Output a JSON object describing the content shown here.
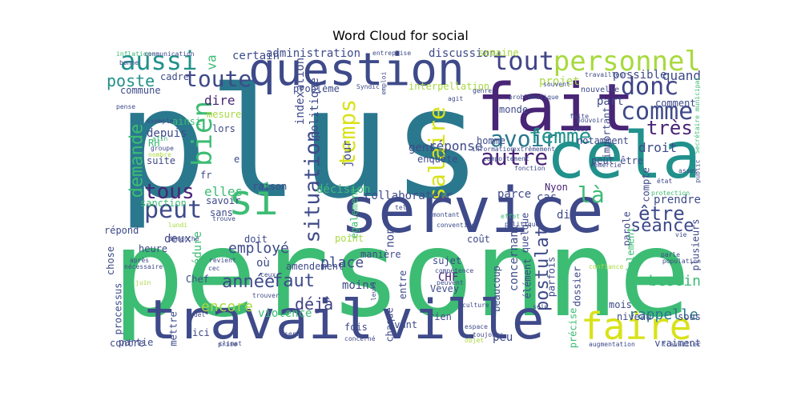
{
  "figure": {
    "title": "Word Cloud for social"
  },
  "palette": {
    "teal": "#2a788e",
    "green": "#3dbc74",
    "yellowgreen": "#a7d93f",
    "purple": "#482576",
    "blue": "#3e4a89",
    "dark": "#414487",
    "yellow": "#d8e219",
    "lightgreen": "#6ccd5a",
    "midteal": "#21918c"
  },
  "words": [
    {
      "text": "plus",
      "color": "teal"
    },
    {
      "text": "personne",
      "color": "green"
    },
    {
      "text": "service",
      "color": "blue"
    },
    {
      "text": "travail",
      "color": "blue"
    },
    {
      "text": "ville",
      "color": "blue"
    },
    {
      "text": "fait",
      "color": "purple"
    },
    {
      "text": "cela",
      "color": "midteal"
    },
    {
      "text": "question",
      "color": "blue"
    },
    {
      "text": "si",
      "color": "green"
    },
    {
      "text": "faire",
      "color": "yellow"
    },
    {
      "text": "personnel",
      "color": "yellowgreen"
    },
    {
      "text": "aussi",
      "color": "midteal"
    },
    {
      "text": "tout",
      "color": "dark"
    },
    {
      "text": "toute",
      "color": "blue"
    },
    {
      "text": "bien",
      "color": "green"
    },
    {
      "text": "peut",
      "color": "blue"
    },
    {
      "text": "tous",
      "color": "purple"
    },
    {
      "text": "donc",
      "color": "dark"
    },
    {
      "text": "comme",
      "color": "blue"
    },
    {
      "text": "avoir",
      "color": "teal"
    },
    {
      "text": "femme",
      "color": "midteal"
    },
    {
      "text": "autre",
      "color": "purple"
    },
    {
      "text": "très",
      "color": "purple"
    },
    {
      "text": "là",
      "color": "green"
    },
    {
      "text": "être",
      "color": "blue"
    },
    {
      "text": "séance",
      "color": "blue"
    },
    {
      "text": "temps",
      "color": "yellow"
    },
    {
      "text": "salaire",
      "color": "yellow"
    },
    {
      "text": "situation",
      "color": "blue"
    },
    {
      "text": "demande",
      "color": "green"
    },
    {
      "text": "poste",
      "color": "midteal"
    },
    {
      "text": "faut",
      "color": "blue"
    },
    {
      "text": "année",
      "color": "blue"
    },
    {
      "text": "postulat",
      "color": "blue"
    },
    {
      "text": "déjà",
      "color": "dark"
    },
    {
      "text": "encore",
      "color": "yellowgreen"
    },
    {
      "text": "rappelle",
      "color": "teal"
    },
    {
      "text": "besoin",
      "color": "green"
    },
    {
      "text": "employé",
      "color": "blue"
    },
    {
      "text": "place",
      "color": "blue"
    },
    {
      "text": "elles",
      "color": "green"
    },
    {
      "text": "va",
      "color": "green"
    },
    {
      "text": "dire",
      "color": "purple"
    },
    {
      "text": "depuis",
      "color": "blue"
    },
    {
      "text": "réponse",
      "color": "blue"
    },
    {
      "text": "droit",
      "color": "blue"
    },
    {
      "text": "part",
      "color": "blue"
    },
    {
      "text": "quand",
      "color": "blue"
    },
    {
      "text": "possible",
      "color": "blue"
    },
    {
      "text": "projet",
      "color": "yellowgreen"
    },
    {
      "text": "discussion",
      "color": "blue"
    },
    {
      "text": "administration",
      "color": "blue"
    },
    {
      "text": "certain",
      "color": "blue"
    },
    {
      "text": "cadre",
      "color": "blue"
    },
    {
      "text": "commune",
      "color": "blue"
    },
    {
      "text": "problème",
      "color": "blue"
    },
    {
      "text": "politique",
      "color": "blue"
    },
    {
      "text": "indexation",
      "color": "blue"
    },
    {
      "text": "interpellation",
      "color": "yellowgreen"
    },
    {
      "text": "jour",
      "color": "blue"
    },
    {
      "text": "gens",
      "color": "blue"
    },
    {
      "text": "enquête",
      "color": "blue"
    },
    {
      "text": "collaborateur",
      "color": "blue"
    },
    {
      "text": "décision",
      "color": "green"
    },
    {
      "text": "parce",
      "color": "blue"
    },
    {
      "text": "cas",
      "color": "blue"
    },
    {
      "text": "Nyon",
      "color": "purple"
    },
    {
      "text": "dit",
      "color": "blue"
    },
    {
      "text": "prendre",
      "color": "blue"
    },
    {
      "text": "sanction",
      "color": "green"
    },
    {
      "text": "heure",
      "color": "blue"
    },
    {
      "text": "raison",
      "color": "blue"
    },
    {
      "text": "savoir",
      "color": "blue"
    },
    {
      "text": "sans",
      "color": "blue"
    },
    {
      "text": "deux",
      "color": "dark"
    },
    {
      "text": "Chef",
      "color": "blue"
    },
    {
      "text": "où",
      "color": "blue"
    },
    {
      "text": "procédure",
      "color": "green"
    },
    {
      "text": "amendement",
      "color": "blue"
    },
    {
      "text": "violence",
      "color": "green"
    },
    {
      "text": "mettre",
      "color": "blue"
    },
    {
      "text": "ici",
      "color": "blue"
    },
    {
      "text": "fois",
      "color": "blue"
    },
    {
      "text": "partie",
      "color": "blue"
    },
    {
      "text": "contre",
      "color": "blue"
    },
    {
      "text": "processus",
      "color": "blue"
    },
    {
      "text": "chose",
      "color": "blue"
    },
    {
      "text": "moins",
      "color": "blue"
    },
    {
      "text": "CHF",
      "color": "purple"
    },
    {
      "text": "Vevey",
      "color": "blue"
    },
    {
      "text": "manière",
      "color": "blue"
    },
    {
      "text": "sujet",
      "color": "blue"
    },
    {
      "text": "concernant",
      "color": "blue"
    },
    {
      "text": "beaucoup",
      "color": "blue"
    },
    {
      "text": "parfois",
      "color": "blue"
    },
    {
      "text": "dossier",
      "color": "blue"
    },
    {
      "text": "mois",
      "color": "blue"
    },
    {
      "text": "niveau",
      "color": "blue"
    },
    {
      "text": "sous",
      "color": "blue"
    },
    {
      "text": "précise",
      "color": "green"
    },
    {
      "text": "vraiment",
      "color": "blue"
    },
    {
      "text": "peu",
      "color": "blue"
    },
    {
      "text": "rien",
      "color": "blue"
    },
    {
      "text": "avant",
      "color": "blue"
    },
    {
      "text": "entre",
      "color": "blue"
    },
    {
      "text": "chaque",
      "color": "blue"
    },
    {
      "text": "non",
      "color": "blue"
    },
    {
      "text": "RH",
      "color": "green"
    },
    {
      "text": "ainsi",
      "color": "green"
    },
    {
      "text": "suite",
      "color": "blue"
    },
    {
      "text": "lors",
      "color": "blue"
    },
    {
      "text": "mesure",
      "color": "yellowgreen"
    },
    {
      "text": "fr",
      "color": "blue"
    },
    {
      "text": "e",
      "color": "blue"
    },
    {
      "text": "monde",
      "color": "blue"
    },
    {
      "text": "homme",
      "color": "blue"
    },
    {
      "text": "notamment",
      "color": "blue"
    },
    {
      "text": "comment",
      "color": "blue"
    },
    {
      "text": "important",
      "color": "blue"
    },
    {
      "text": "compte",
      "color": "blue"
    },
    {
      "text": "peut être",
      "color": "blue"
    },
    {
      "text": "parole",
      "color": "blue"
    },
    {
      "text": "plusieurs",
      "color": "blue"
    },
    {
      "text": "quelque",
      "color": "blue"
    },
    {
      "text": "coût",
      "color": "blue"
    },
    {
      "text": "élément",
      "color": "blue"
    },
    {
      "text": "également",
      "color": "green"
    },
    {
      "text": "point",
      "color": "yellowgreen"
    },
    {
      "text": "doit",
      "color": "blue"
    },
    {
      "text": "répond",
      "color": "blue"
    },
    {
      "text": "réglement",
      "color": "green"
    },
    {
      "text": "semaine",
      "color": "yellowgreen"
    },
    {
      "text": "nouvelle",
      "color": "blue"
    },
    {
      "text": "inflation",
      "color": "green"
    },
    {
      "text": "communication",
      "color": "blue"
    },
    {
      "text": "entreprise",
      "color": "blue"
    },
    {
      "text": "bonne",
      "color": "blue"
    },
    {
      "text": "pense",
      "color": "blue"
    },
    {
      "text": "exemple",
      "color": "blue"
    },
    {
      "text": "afin",
      "color": "green"
    },
    {
      "text": "groupe",
      "color": "blue"
    },
    {
      "text": "nombre",
      "color": "yellowgreen"
    },
    {
      "text": "Syndic",
      "color": "blue"
    },
    {
      "text": "emploi",
      "color": "blue"
    },
    {
      "text": "agit",
      "color": "blue"
    },
    {
      "text": "genre",
      "color": "blue"
    },
    {
      "text": "souvent",
      "color": "blue"
    },
    {
      "text": "problématique",
      "color": "blue"
    },
    {
      "text": "pouvoir",
      "color": "blue"
    },
    {
      "text": "travailleur",
      "color": "blue"
    },
    {
      "text": "Secrétaire municipal",
      "color": "green"
    },
    {
      "text": "faite",
      "color": "blue"
    },
    {
      "text": "suis",
      "color": "blue"
    },
    {
      "text": "information",
      "color": "blue"
    },
    {
      "text": "extrêmement",
      "color": "blue"
    },
    {
      "text": "comportement",
      "color": "blue"
    },
    {
      "text": "fonction",
      "color": "blue"
    },
    {
      "text": "remercie",
      "color": "blue"
    },
    {
      "text": "assez",
      "color": "blue"
    },
    {
      "text": "public",
      "color": "blue"
    },
    {
      "text": "état",
      "color": "blue"
    },
    {
      "text": "protection",
      "color": "green"
    },
    {
      "text": "tel",
      "color": "blue"
    },
    {
      "text": "montant",
      "color": "blue"
    },
    {
      "text": "convention",
      "color": "blue"
    },
    {
      "text": "effet",
      "color": "green"
    },
    {
      "text": "politiques",
      "color": "blue"
    },
    {
      "text": "vie",
      "color": "blue"
    },
    {
      "text": "trouve",
      "color": "blue"
    },
    {
      "text": "lundi",
      "color": "yellowgreen"
    },
    {
      "text": "démarche",
      "color": "blue"
    },
    {
      "text": "revient",
      "color": "blue"
    },
    {
      "text": "cec",
      "color": "blue"
    },
    {
      "text": "ceux",
      "color": "blue"
    },
    {
      "text": "après",
      "color": "blue"
    },
    {
      "text": "nécessaire",
      "color": "blue"
    },
    {
      "text": "juin",
      "color": "yellowgreen"
    },
    {
      "text": "trouver",
      "color": "blue"
    },
    {
      "text": "compétence",
      "color": "blue"
    },
    {
      "text": "peuvent",
      "color": "blue"
    },
    {
      "text": "parle",
      "color": "blue"
    },
    {
      "text": "population",
      "color": "blue"
    },
    {
      "text": "quel",
      "color": "blue"
    },
    {
      "text": "sein",
      "color": "blue"
    },
    {
      "text": "confiance",
      "color": "yellowgreen"
    },
    {
      "text": "espace",
      "color": "blue"
    },
    {
      "text": "objet",
      "color": "yellowgreen"
    },
    {
      "text": "toujours",
      "color": "blue"
    },
    {
      "text": "sera",
      "color": "blue"
    },
    {
      "text": "concerné",
      "color": "blue"
    },
    {
      "text": "climat",
      "color": "blue"
    },
    {
      "text": "prise",
      "color": "blue"
    },
    {
      "text": "augmentation",
      "color": "blue"
    },
    {
      "text": "travailler",
      "color": "blue"
    },
    {
      "text": "culture",
      "color": "blue"
    },
    {
      "text": "leurs",
      "color": "blue"
    }
  ]
}
